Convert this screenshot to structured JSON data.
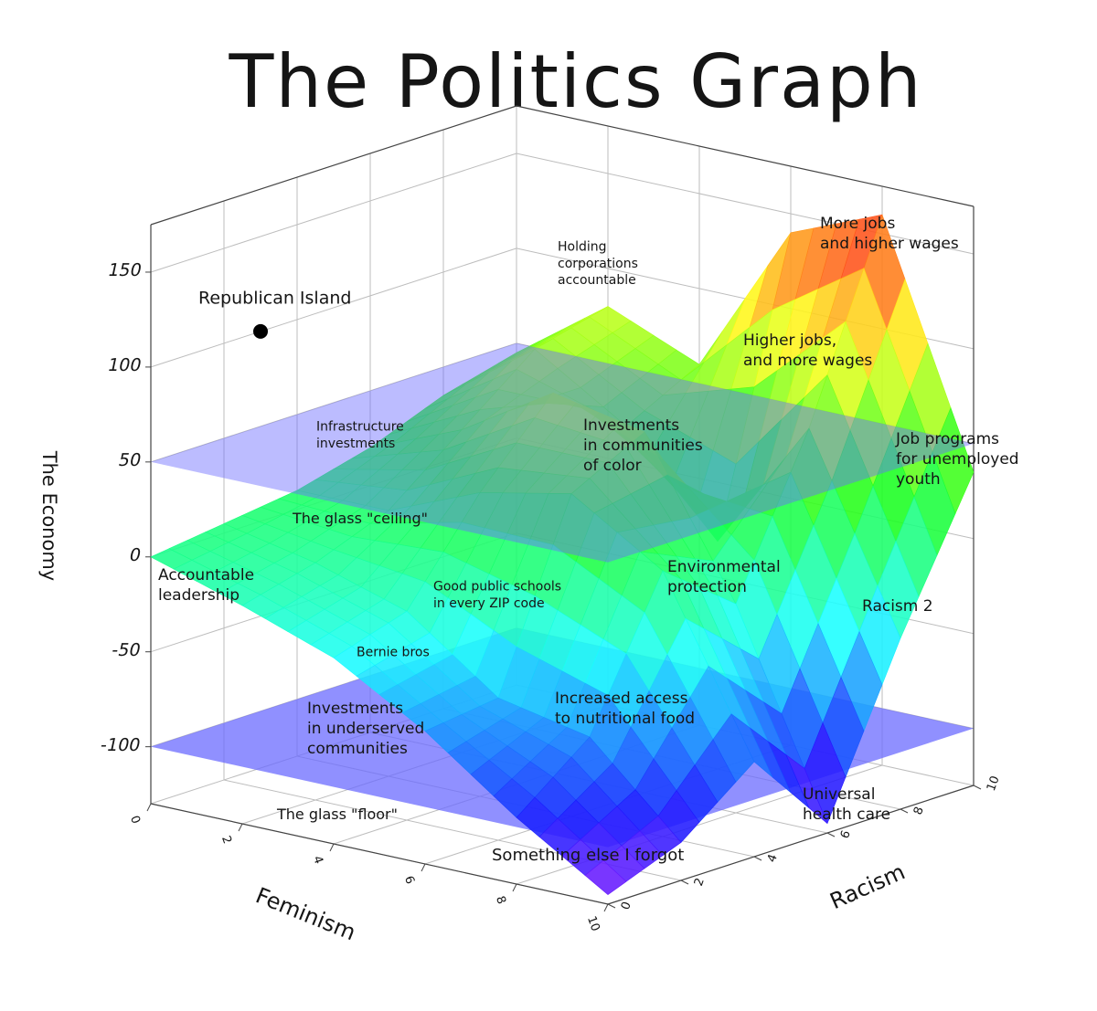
{
  "chart_data": {
    "type": "surface3d",
    "title": "The Politics Graph",
    "x_label": "Feminism",
    "y_label": "Racism",
    "z_label": "The Economy",
    "xlim": [
      0,
      10
    ],
    "xticks": [
      0,
      2,
      4,
      6,
      8,
      10
    ],
    "ylim": [
      0,
      10
    ],
    "yticks": [
      0,
      2,
      4,
      6,
      8,
      10
    ],
    "zlim": [
      -130,
      175
    ],
    "zticks": [
      -100,
      -50,
      0,
      50,
      100,
      150
    ],
    "x": [
      0,
      2,
      4,
      6,
      8,
      10
    ],
    "y": [
      0,
      2,
      4,
      6,
      8,
      10
    ],
    "z": [
      [
        0,
        5,
        10,
        20,
        35,
        45
      ],
      [
        -15,
        -5,
        10,
        40,
        70,
        80
      ],
      [
        -32,
        -20,
        30,
        70,
        40,
        60
      ],
      [
        -60,
        -55,
        40,
        60,
        -10,
        140
      ],
      [
        -95,
        -65,
        10,
        -20,
        60,
        160
      ],
      [
        -125,
        -110,
        -80,
        -125,
        -40,
        35
      ]
    ],
    "colormap": "rainbow",
    "grid": true,
    "planes": [
      {
        "z": 50,
        "color": "#6b6bff"
      },
      {
        "z": -100,
        "color": "#6b6bff"
      }
    ],
    "points": [
      {
        "label": "Republican Island",
        "x": 0,
        "y": 3,
        "z": 100,
        "color": "#000000"
      }
    ],
    "annotations": [
      {
        "lines": [
          "More jobs",
          "and higher wages"
        ]
      },
      {
        "lines": [
          "Holding",
          "corporations",
          "accountable"
        ]
      },
      {
        "lines": [
          "Higher jobs,",
          "and more wages"
        ]
      },
      {
        "lines": [
          "Infrastructure",
          "investments"
        ]
      },
      {
        "lines": [
          "Investments",
          "in communities",
          "of color"
        ]
      },
      {
        "lines": [
          "Job programs",
          "for unemployed",
          "youth"
        ]
      },
      {
        "lines": [
          "The glass \"ceiling\""
        ]
      },
      {
        "lines": [
          "Accountable",
          "leadership"
        ]
      },
      {
        "lines": [
          "Good public schools",
          "in every ZIP code"
        ]
      },
      {
        "lines": [
          "Environmental",
          "protection"
        ]
      },
      {
        "lines": [
          "Racism 2"
        ]
      },
      {
        "lines": [
          "Bernie bros"
        ]
      },
      {
        "lines": [
          "Increased access",
          "to nutritional food"
        ]
      },
      {
        "lines": [
          "Investments",
          "in underserved",
          "communities"
        ]
      },
      {
        "lines": [
          "Universal",
          "health care"
        ]
      },
      {
        "lines": [
          "The glass \"floor\""
        ]
      },
      {
        "lines": [
          "Something else I forgot"
        ]
      }
    ]
  }
}
